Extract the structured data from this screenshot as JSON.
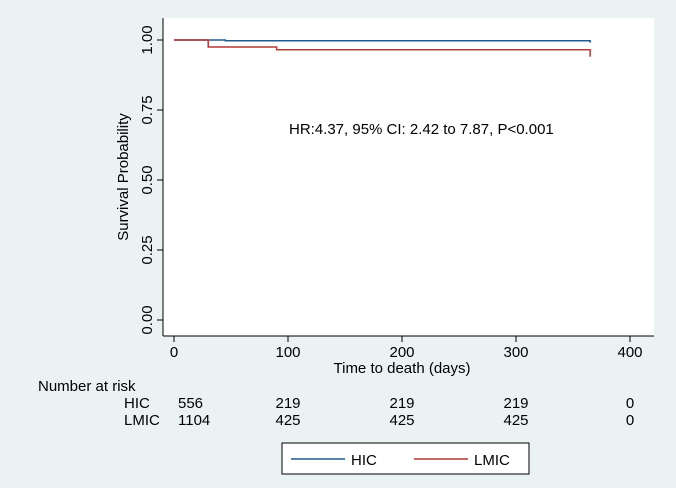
{
  "chart_data": {
    "type": "line",
    "title": "",
    "xlabel": "Time to death (days)",
    "ylabel": "Survival Probability",
    "xlim": [
      0,
      400
    ],
    "ylim": [
      0,
      1
    ],
    "x_ticks": [
      0,
      100,
      200,
      300,
      400
    ],
    "x_tick_labels": [
      "0",
      "100",
      "200",
      "300",
      "400"
    ],
    "y_ticks": [
      0,
      0.25,
      0.5,
      0.75,
      1
    ],
    "y_tick_labels": [
      "0.00",
      "0.25",
      "0.50",
      "0.75",
      "1.00"
    ],
    "grid": false,
    "legend_position": "bottom",
    "annotation": "HR:4.37, 95% CI: 2.42 to 7.87, P<0.001",
    "series": [
      {
        "name": "HIC",
        "color": "#1f5b8e",
        "step_points": [
          [
            0,
            1.0
          ],
          [
            45,
            1.0
          ],
          [
            45,
            0.997
          ],
          [
            365,
            0.997
          ],
          [
            365,
            0.99
          ]
        ]
      },
      {
        "name": "LMIC",
        "color": "#b03a35",
        "step_points": [
          [
            0,
            1.0
          ],
          [
            30,
            1.0
          ],
          [
            30,
            0.975
          ],
          [
            90,
            0.975
          ],
          [
            90,
            0.965
          ],
          [
            365,
            0.965
          ],
          [
            365,
            0.94
          ]
        ]
      }
    ],
    "risk_table": {
      "heading": "Number at risk",
      "times": [
        0,
        100,
        200,
        300,
        400
      ],
      "rows": [
        {
          "label": "HIC",
          "values": [
            "556",
            "219",
            "219",
            "219",
            "0"
          ]
        },
        {
          "label": "LMIC",
          "values": [
            "1104",
            "425",
            "425",
            "425",
            "0"
          ]
        }
      ]
    }
  }
}
